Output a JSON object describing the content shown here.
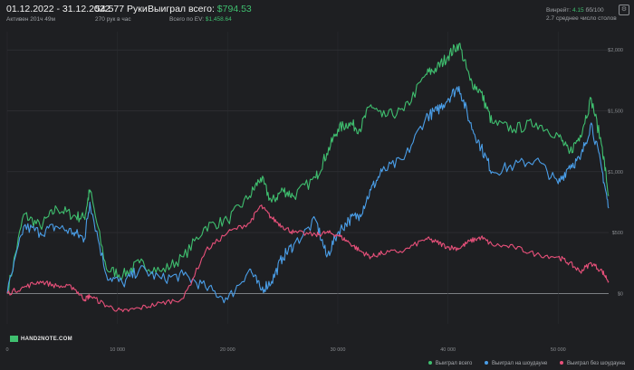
{
  "header": {
    "period": "01.12.2022 - 31.12.2022",
    "active": "Активен 201ч 49м",
    "hands": "54 577 Руки",
    "hands_per_hour": "270 рук в час",
    "won_total_label": "Выиграл всего:",
    "won_total_value": "$794.53",
    "ev_label": "Всего по EV:",
    "ev_value": "$1,458.64",
    "winrate_label": "Винрейт:",
    "winrate_value": "4.15",
    "winrate_unit": "бб/100",
    "tables": "2.7 среднее число столов"
  },
  "brand": "HAND2NOTE.COM",
  "icons": {
    "settings": "gear-icon"
  },
  "colors": {
    "total": "#3fbf6f",
    "showdown": "#4a9ee8",
    "nonshowdown": "#e8507a",
    "background": "#1e1f22"
  },
  "chart_data": {
    "type": "line",
    "xlim": [
      0,
      54577
    ],
    "ylim": [
      -250,
      2150
    ],
    "x_ticks": [
      0,
      10000,
      20000,
      30000,
      40000,
      50000
    ],
    "x_tick_labels": [
      "0",
      "10 000",
      "20 000",
      "30 000",
      "40 000",
      "50 000"
    ],
    "y_ticks": [
      0,
      500,
      1000,
      1500,
      2000
    ],
    "y_tick_labels": [
      "$0",
      "$500",
      "$1,000",
      "$1,500",
      "$2,000"
    ],
    "grid": true,
    "legend_position": "bottom-right",
    "x": [
      0,
      1500,
      3000,
      4500,
      6000,
      7000,
      7500,
      9000,
      10500,
      12000,
      14000,
      16000,
      18000,
      20000,
      22000,
      23000,
      24000,
      25000,
      26000,
      28000,
      29000,
      30000,
      31000,
      32000,
      33000,
      34000,
      36000,
      38000,
      39000,
      40000,
      41000,
      42000,
      43000,
      44000,
      46000,
      48000,
      50000,
      51000,
      52000,
      53000,
      54000,
      54577
    ],
    "series": [
      {
        "name": "Выиграл всего",
        "key": "total",
        "values": [
          0,
          650,
          550,
          700,
          640,
          620,
          850,
          200,
          150,
          250,
          180,
          300,
          550,
          600,
          800,
          950,
          750,
          850,
          800,
          950,
          1150,
          1350,
          1400,
          1350,
          1550,
          1450,
          1500,
          1800,
          1850,
          1950,
          2050,
          1750,
          1650,
          1400,
          1350,
          1400,
          1300,
          1150,
          1300,
          1600,
          1200,
          800
        ]
      },
      {
        "name": "Выиграл на шоудауне",
        "key": "showdown",
        "values": [
          0,
          550,
          500,
          550,
          500,
          450,
          750,
          150,
          80,
          200,
          120,
          150,
          50,
          -50,
          200,
          30,
          100,
          300,
          400,
          600,
          300,
          500,
          600,
          650,
          850,
          1000,
          1100,
          1450,
          1500,
          1600,
          1700,
          1400,
          1200,
          1000,
          1050,
          1100,
          900,
          1050,
          1100,
          1400,
          1000,
          700
        ]
      },
      {
        "name": "Выиграл без шоудауна",
        "key": "nonshowdown",
        "values": [
          0,
          50,
          100,
          60,
          50,
          -50,
          -20,
          -100,
          -150,
          -120,
          -80,
          -40,
          350,
          500,
          580,
          720,
          620,
          550,
          500,
          480,
          500,
          480,
          420,
          350,
          300,
          330,
          350,
          450,
          420,
          380,
          370,
          430,
          460,
          400,
          380,
          320,
          300,
          250,
          180,
          250,
          180,
          100
        ]
      }
    ]
  }
}
